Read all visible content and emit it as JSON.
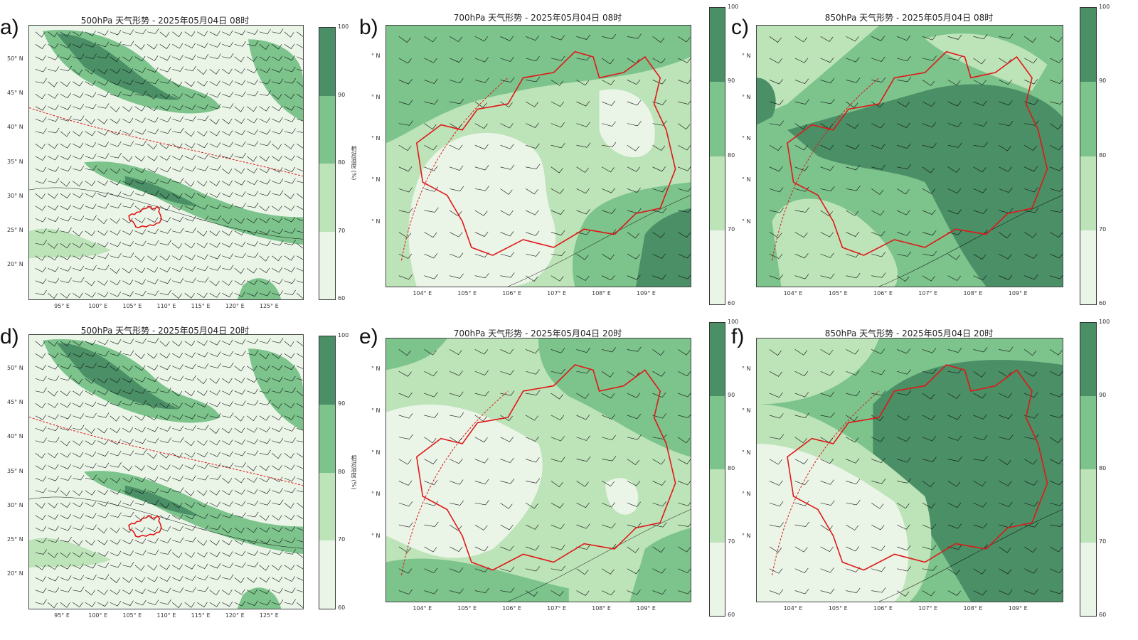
{
  "colors": {
    "rh_60_70": "#eaf5e8",
    "rh_70_80": "#bde3b8",
    "rh_80_90": "#7cc38c",
    "rh_90_100": "#4a8f66",
    "boundary": "#e01818",
    "contour": "#111111"
  },
  "colorbar": {
    "ticks": [
      "100",
      "90",
      "80",
      "70",
      "60"
    ],
    "label": "相对湿度 (%)"
  },
  "chart_data": [
    {
      "type": "heatmap",
      "label": "a)",
      "title": "500hPa  天气形势 - 2025年05月04日 08时",
      "xticks": [
        "95° E",
        "100° E",
        "105° E",
        "110° E",
        "115° E",
        "120° E",
        "125° E"
      ],
      "yticks": [
        "50° N",
        "45° N",
        "40° N",
        "35° N",
        "30° N",
        "25° N",
        "20° N"
      ],
      "clim": [
        60,
        100
      ]
    },
    {
      "type": "heatmap",
      "label": "b)",
      "title": "700hPa  天气形势 - 2025年05月04日 08时",
      "xticks": [
        "104° E",
        "105° E",
        "106° E",
        "107° E",
        "108° E",
        "109° E"
      ],
      "yticks": [
        "° N",
        "° N",
        "° N",
        "° N",
        "° N"
      ],
      "clim": [
        60,
        100
      ]
    },
    {
      "type": "heatmap",
      "label": "c)",
      "title": "850hPa  天气形势 - 2025年05月04日 08时",
      "xticks": [
        "104° E",
        "105° E",
        "106° E",
        "107° E",
        "108° E",
        "109° E"
      ],
      "yticks": [
        "° N",
        "° N",
        "° N",
        "° N",
        "° N"
      ],
      "clim": [
        60,
        100
      ]
    },
    {
      "type": "heatmap",
      "label": "d)",
      "title": "500hPa  天气形势 - 2025年05月04日 20时",
      "xticks": [
        "95° E",
        "100° E",
        "105° E",
        "110° E",
        "115° E",
        "120° E",
        "125° E"
      ],
      "yticks": [
        "50° N",
        "45° N",
        "40° N",
        "35° N",
        "30° N",
        "25° N",
        "20° N"
      ],
      "clim": [
        60,
        100
      ]
    },
    {
      "type": "heatmap",
      "label": "e)",
      "title": "700hPa  天气形势 - 2025年05月04日 20时",
      "xticks": [
        "104° E",
        "105° E",
        "106° E",
        "107° E",
        "108° E",
        "109° E"
      ],
      "yticks": [
        "° N",
        "° N",
        "° N",
        "° N",
        "° N"
      ],
      "clim": [
        60,
        100
      ]
    },
    {
      "type": "heatmap",
      "label": "f)",
      "title": "850hPa  天气形势 - 2025年05月04日 20时",
      "xticks": [
        "104° E",
        "105° E",
        "106° E",
        "107° E",
        "108° E",
        "109° E"
      ],
      "yticks": [
        "° N",
        "° N",
        "° N",
        "° N",
        "° N"
      ],
      "clim": [
        60,
        100
      ]
    }
  ]
}
